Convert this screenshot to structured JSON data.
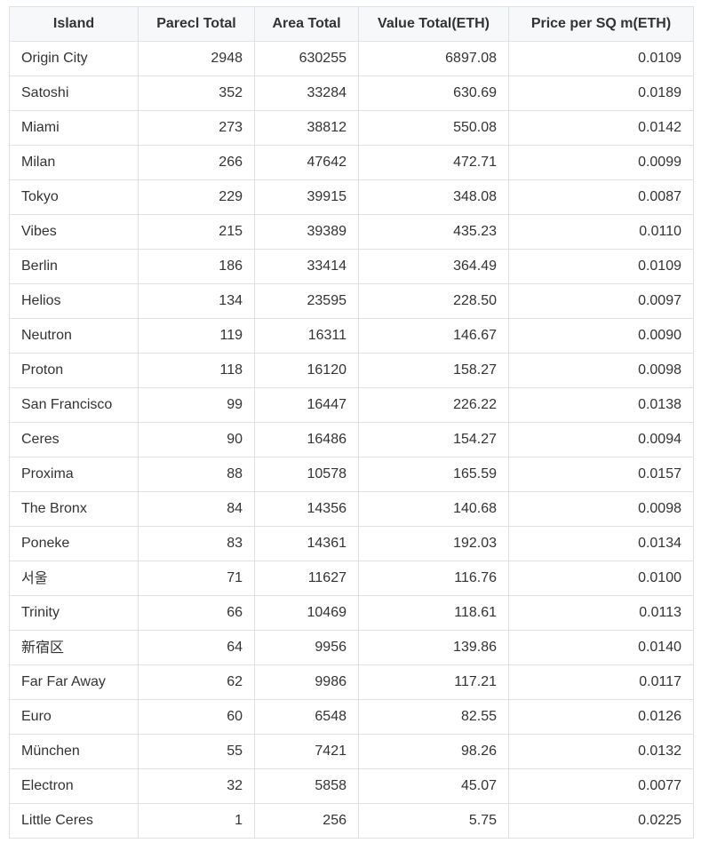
{
  "table": {
    "headers": [
      "Island",
      "Parecl Total",
      "Area Total",
      "Value Total(ETH)",
      "Price per SQ m(ETH)"
    ],
    "rows": [
      {
        "island": "Origin City",
        "parcel_total": "2948",
        "area_total": "630255",
        "value_total": "6897.08",
        "price_per_sqm": "0.0109"
      },
      {
        "island": "Satoshi",
        "parcel_total": "352",
        "area_total": "33284",
        "value_total": "630.69",
        "price_per_sqm": "0.0189"
      },
      {
        "island": "Miami",
        "parcel_total": "273",
        "area_total": "38812",
        "value_total": "550.08",
        "price_per_sqm": "0.0142"
      },
      {
        "island": "Milan",
        "parcel_total": "266",
        "area_total": "47642",
        "value_total": "472.71",
        "price_per_sqm": "0.0099"
      },
      {
        "island": "Tokyo",
        "parcel_total": "229",
        "area_total": "39915",
        "value_total": "348.08",
        "price_per_sqm": "0.0087"
      },
      {
        "island": "Vibes",
        "parcel_total": "215",
        "area_total": "39389",
        "value_total": "435.23",
        "price_per_sqm": "0.0110"
      },
      {
        "island": "Berlin",
        "parcel_total": "186",
        "area_total": "33414",
        "value_total": "364.49",
        "price_per_sqm": "0.0109"
      },
      {
        "island": "Helios",
        "parcel_total": "134",
        "area_total": "23595",
        "value_total": "228.50",
        "price_per_sqm": "0.0097"
      },
      {
        "island": "Neutron",
        "parcel_total": "119",
        "area_total": "16311",
        "value_total": "146.67",
        "price_per_sqm": "0.0090"
      },
      {
        "island": "Proton",
        "parcel_total": "118",
        "area_total": "16120",
        "value_total": "158.27",
        "price_per_sqm": "0.0098"
      },
      {
        "island": "San Francisco",
        "parcel_total": "99",
        "area_total": "16447",
        "value_total": "226.22",
        "price_per_sqm": "0.0138"
      },
      {
        "island": "Ceres",
        "parcel_total": "90",
        "area_total": "16486",
        "value_total": "154.27",
        "price_per_sqm": "0.0094"
      },
      {
        "island": "Proxima",
        "parcel_total": "88",
        "area_total": "10578",
        "value_total": "165.59",
        "price_per_sqm": "0.0157"
      },
      {
        "island": "The Bronx",
        "parcel_total": "84",
        "area_total": "14356",
        "value_total": "140.68",
        "price_per_sqm": "0.0098"
      },
      {
        "island": "Poneke",
        "parcel_total": "83",
        "area_total": "14361",
        "value_total": "192.03",
        "price_per_sqm": "0.0134"
      },
      {
        "island": "서울",
        "parcel_total": "71",
        "area_total": "11627",
        "value_total": "116.76",
        "price_per_sqm": "0.0100"
      },
      {
        "island": "Trinity",
        "parcel_total": "66",
        "area_total": "10469",
        "value_total": "118.61",
        "price_per_sqm": "0.0113"
      },
      {
        "island": "新宿区",
        "parcel_total": "64",
        "area_total": "9956",
        "value_total": "139.86",
        "price_per_sqm": "0.0140"
      },
      {
        "island": "Far Far Away",
        "parcel_total": "62",
        "area_total": "9986",
        "value_total": "117.21",
        "price_per_sqm": "0.0117"
      },
      {
        "island": "Euro",
        "parcel_total": "60",
        "area_total": "6548",
        "value_total": "82.55",
        "price_per_sqm": "0.0126"
      },
      {
        "island": "München",
        "parcel_total": "55",
        "area_total": "7421",
        "value_total": "98.26",
        "price_per_sqm": "0.0132"
      },
      {
        "island": "Electron",
        "parcel_total": "32",
        "area_total": "5858",
        "value_total": "45.07",
        "price_per_sqm": "0.0077"
      },
      {
        "island": "Little Ceres",
        "parcel_total": "1",
        "area_total": "256",
        "value_total": "5.75",
        "price_per_sqm": "0.0225"
      }
    ]
  }
}
